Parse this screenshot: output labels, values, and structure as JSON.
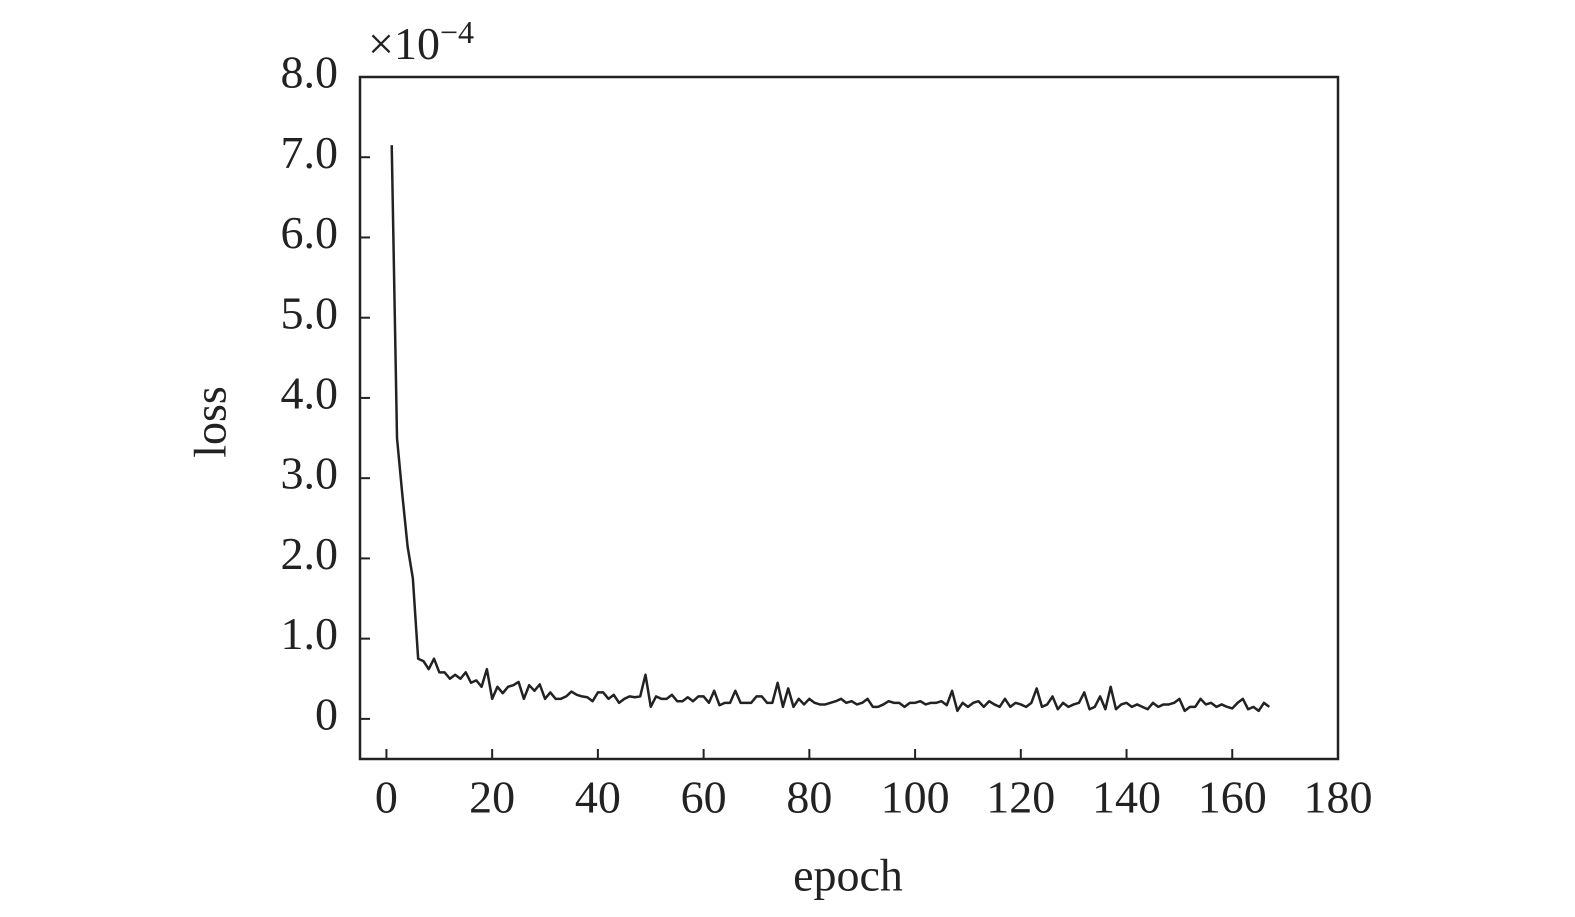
{
  "chart_data": {
    "type": "line",
    "x_label": "epoch",
    "y_label": "loss",
    "y_scale_label": {
      "base": "×10",
      "exponent": "−4"
    },
    "color": "#222222",
    "xlim": [
      -5,
      180
    ],
    "xticks": [
      0,
      20,
      40,
      60,
      80,
      100,
      120,
      140,
      160,
      180
    ],
    "ylim": [
      -0.5,
      8
    ],
    "yticks": [
      0,
      {
        "value": 1,
        "label": "1.0"
      },
      {
        "value": 2,
        "label": "2.0"
      },
      {
        "value": 3,
        "label": "3.0"
      },
      {
        "value": 4,
        "label": "4.0"
      },
      {
        "value": 5,
        "label": "5.0"
      },
      {
        "value": 6,
        "label": "6.0"
      },
      {
        "value": 7,
        "label": "7.0"
      },
      {
        "value": 8,
        "label": "8.0"
      }
    ],
    "x": [
      1,
      2,
      3,
      4,
      5,
      6,
      7,
      8,
      9,
      10,
      11,
      12,
      13,
      14,
      15,
      16,
      17,
      18,
      19,
      20,
      21,
      22,
      23,
      24,
      25,
      26,
      27,
      28,
      29,
      30,
      31,
      32,
      33,
      34,
      35,
      36,
      37,
      38,
      39,
      40,
      41,
      42,
      43,
      44,
      45,
      46,
      47,
      48,
      49,
      50,
      51,
      52,
      53,
      54,
      55,
      56,
      57,
      58,
      59,
      60,
      61,
      62,
      63,
      64,
      65,
      66,
      67,
      68,
      69,
      70,
      71,
      72,
      73,
      74,
      75,
      76,
      77,
      78,
      79,
      80,
      81,
      82,
      83,
      84,
      85,
      86,
      87,
      88,
      89,
      90,
      91,
      92,
      93,
      94,
      95,
      96,
      97,
      98,
      99,
      100,
      101,
      102,
      103,
      104,
      105,
      106,
      107,
      108,
      109,
      110,
      111,
      112,
      113,
      114,
      115,
      116,
      117,
      118,
      119,
      120,
      121,
      122,
      123,
      124,
      125,
      126,
      127,
      128,
      129,
      130,
      131,
      132,
      133,
      134,
      135,
      136,
      137,
      138,
      139,
      140,
      141,
      142,
      143,
      144,
      145,
      146,
      147,
      148,
      149,
      150,
      151,
      152,
      153,
      154,
      155,
      156,
      157,
      158,
      159,
      160,
      161,
      162,
      163,
      164,
      165,
      166,
      167
    ],
    "values": [
      7.15,
      3.5,
      2.8,
      2.15,
      1.75,
      0.75,
      0.72,
      0.62,
      0.75,
      0.58,
      0.58,
      0.5,
      0.55,
      0.5,
      0.58,
      0.45,
      0.48,
      0.4,
      0.62,
      0.25,
      0.4,
      0.32,
      0.4,
      0.42,
      0.46,
      0.25,
      0.42,
      0.35,
      0.43,
      0.25,
      0.33,
      0.25,
      0.25,
      0.28,
      0.34,
      0.3,
      0.28,
      0.27,
      0.22,
      0.33,
      0.33,
      0.25,
      0.3,
      0.2,
      0.25,
      0.28,
      0.27,
      0.28,
      0.55,
      0.15,
      0.28,
      0.25,
      0.25,
      0.3,
      0.22,
      0.22,
      0.27,
      0.22,
      0.28,
      0.28,
      0.2,
      0.35,
      0.17,
      0.2,
      0.2,
      0.35,
      0.2,
      0.2,
      0.2,
      0.28,
      0.28,
      0.2,
      0.2,
      0.45,
      0.15,
      0.38,
      0.15,
      0.25,
      0.18,
      0.25,
      0.2,
      0.18,
      0.18,
      0.2,
      0.22,
      0.25,
      0.2,
      0.22,
      0.18,
      0.2,
      0.25,
      0.15,
      0.15,
      0.18,
      0.22,
      0.2,
      0.2,
      0.15,
      0.2,
      0.2,
      0.22,
      0.18,
      0.2,
      0.2,
      0.22,
      0.17,
      0.35,
      0.1,
      0.2,
      0.15,
      0.2,
      0.22,
      0.15,
      0.22,
      0.18,
      0.15,
      0.25,
      0.15,
      0.2,
      0.18,
      0.15,
      0.2,
      0.38,
      0.15,
      0.18,
      0.28,
      0.12,
      0.2,
      0.15,
      0.18,
      0.2,
      0.33,
      0.12,
      0.15,
      0.28,
      0.12,
      0.4,
      0.12,
      0.18,
      0.2,
      0.15,
      0.18,
      0.15,
      0.12,
      0.2,
      0.15,
      0.18,
      0.18,
      0.2,
      0.25,
      0.1,
      0.15,
      0.15,
      0.25,
      0.18,
      0.2,
      0.15,
      0.18,
      0.15,
      0.13,
      0.2,
      0.25,
      0.12,
      0.15,
      0.1,
      0.2,
      0.15
    ]
  }
}
